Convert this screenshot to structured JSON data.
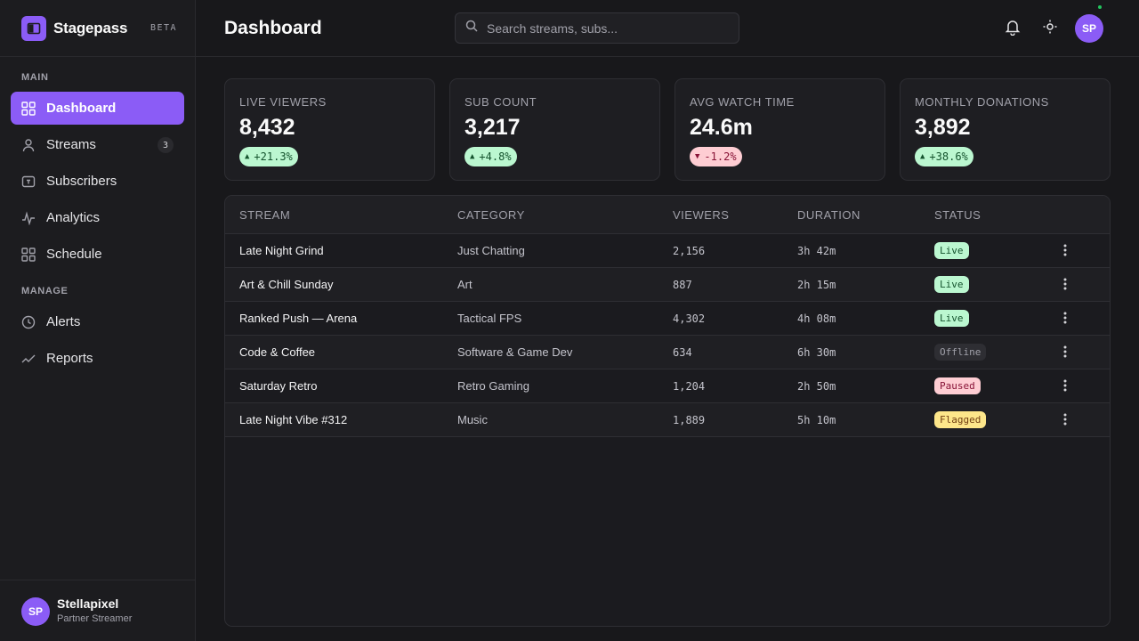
{
  "brand": {
    "name": "Stagepass",
    "tag": "BETA"
  },
  "sidebar": {
    "sections": [
      "MAIN",
      "MANAGE"
    ],
    "items": [
      {
        "label": "Dashboard",
        "icon": "grid-icon",
        "active": true
      },
      {
        "label": "Streams",
        "icon": "user-icon",
        "badge": "3"
      },
      {
        "label": "Subscribers",
        "icon": "tv-icon"
      },
      {
        "label": "Analytics",
        "icon": "activity-icon"
      },
      {
        "label": "Schedule",
        "icon": "grid-icon"
      },
      {
        "label": "Alerts",
        "icon": "clock-icon"
      },
      {
        "label": "Reports",
        "icon": "trend-icon"
      }
    ],
    "user": {
      "initials": "SP",
      "name": "Stellapixel",
      "role": "Partner Streamer"
    }
  },
  "header": {
    "title": "Dashboard",
    "search_placeholder": "Search streams, subs...",
    "avatar_initials": "SP",
    "icons": [
      "bell-icon",
      "sun-icon"
    ]
  },
  "stats": [
    {
      "label": "LIVE VIEWERS",
      "value": "8,432",
      "delta": "+21.3%",
      "direction": "up"
    },
    {
      "label": "SUB COUNT",
      "value": "3,217",
      "delta": "+4.8%",
      "direction": "up"
    },
    {
      "label": "AVG WATCH TIME",
      "value": "24.6m",
      "delta": "-1.2%",
      "direction": "down"
    },
    {
      "label": "MONTHLY DONATIONS",
      "value": "3,892",
      "delta": "+38.6%",
      "direction": "up"
    }
  ],
  "table": {
    "columns": [
      "STREAM",
      "CATEGORY",
      "VIEWERS",
      "DURATION",
      "STATUS"
    ],
    "rows": [
      {
        "stream": "Late Night Grind",
        "category": "Just Chatting",
        "viewers": "2,156",
        "duration": "3h 42m",
        "status": "Live",
        "kind": "live"
      },
      {
        "stream": "Art & Chill Sunday",
        "category": "Art",
        "viewers": "887",
        "duration": "2h 15m",
        "status": "Live",
        "kind": "live"
      },
      {
        "stream": "Ranked Push — Arena",
        "category": "Tactical FPS",
        "viewers": "4,302",
        "duration": "4h 08m",
        "status": "Live",
        "kind": "live"
      },
      {
        "stream": "Code & Coffee",
        "category": "Software & Game Dev",
        "viewers": "634",
        "duration": "6h 30m",
        "status": "Offline",
        "kind": "offline"
      },
      {
        "stream": "Saturday Retro",
        "category": "Retro Gaming",
        "viewers": "1,204",
        "duration": "2h 50m",
        "status": "Paused",
        "kind": "paused"
      },
      {
        "stream": "Late Night Vibe #312",
        "category": "Music",
        "viewers": "1,889",
        "duration": "5h 10m",
        "status": "Flagged",
        "kind": "flagged"
      }
    ]
  },
  "colors": {
    "accent": "#8b5cf6",
    "online": "#22c55e"
  }
}
